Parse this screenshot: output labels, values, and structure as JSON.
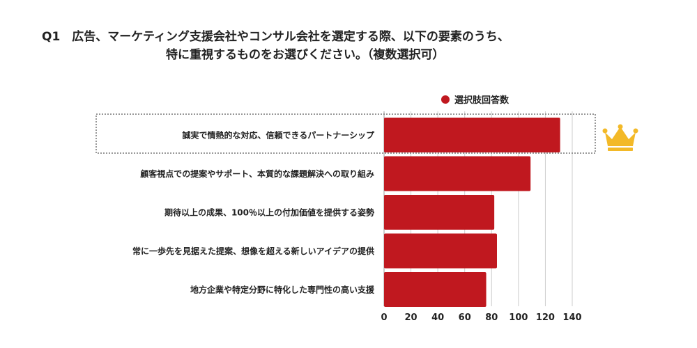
{
  "title": {
    "line1": "Q1　広告、マーケティング支援会社やコンサル会社を選定する際、以下の要素のうち、",
    "line2": "特に重視するものをお選びください。（複数選択可）"
  },
  "colors": {
    "bar": "#c0181f",
    "grid": "#cccccc",
    "highlight_border": "#777777",
    "crown": "#f3b928"
  },
  "icons": {
    "top_item": "crown-icon"
  },
  "chart_data": {
    "type": "bar",
    "orientation": "horizontal",
    "categories": [
      "誠実で情熱的な対応、信頼できるパートナーシップ",
      "顧客視点での提案やサポート、本質的な課題解決への取り組み",
      "期待以上の成果、100％以上の付加価値を提供する姿勢",
      "常に一歩先を見据えた提案、想像を超える新しいアイデアの提供",
      "地方企業や特定分野に特化した専門性の高い支援"
    ],
    "series": [
      {
        "name": "選択肢回答数",
        "values": [
          131,
          109,
          82,
          84,
          76
        ]
      }
    ],
    "xlim": [
      0,
      140
    ],
    "xticks": [
      0,
      20,
      40,
      60,
      80,
      100,
      120,
      140
    ],
    "grid": true,
    "legend": "top-right",
    "highlight_index": 0
  }
}
